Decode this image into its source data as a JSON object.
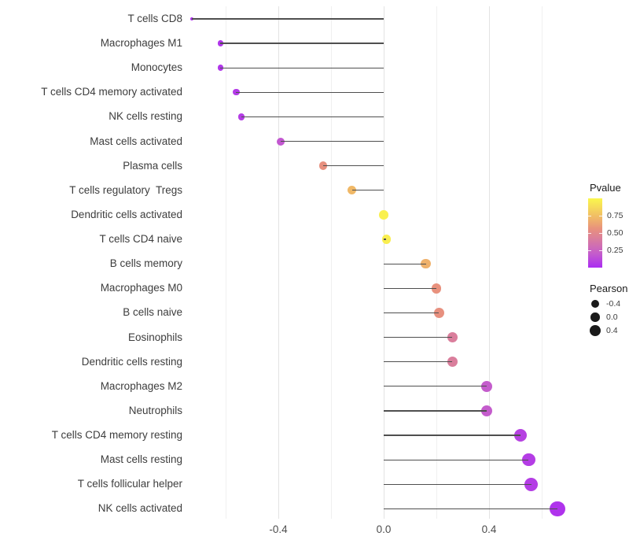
{
  "chart_data": {
    "type": "scatter",
    "variant": "lollipop",
    "orientation": "horizontal",
    "title": "",
    "xlabel": "",
    "ylabel": "",
    "xlim": [
      -0.74,
      0.72
    ],
    "baseline_x": 0,
    "grid": {
      "major": [
        -0.4,
        0,
        0.4
      ],
      "minor": [
        -0.6,
        -0.2,
        0.2,
        0.6
      ]
    },
    "x_ticks": [
      {
        "value": -0.4,
        "label": "-0.4"
      },
      {
        "value": 0.0,
        "label": "0.0"
      },
      {
        "value": 0.4,
        "label": "0.4"
      }
    ],
    "points": [
      {
        "label": "T cells CD8",
        "pearson": -0.73,
        "pvalue": 0.02
      },
      {
        "label": "Macrophages M1",
        "pearson": -0.62,
        "pvalue": 0.04
      },
      {
        "label": "Monocytes",
        "pearson": -0.62,
        "pvalue": 0.04
      },
      {
        "label": "T cells CD4 memory activated",
        "pearson": -0.56,
        "pvalue": 0.06
      },
      {
        "label": "NK cells resting",
        "pearson": -0.54,
        "pvalue": 0.07
      },
      {
        "label": "Mast cells activated",
        "pearson": -0.39,
        "pvalue": 0.18
      },
      {
        "label": "Plasma cells",
        "pearson": -0.23,
        "pvalue": 0.55
      },
      {
        "label": "T cells regulatory  Tregs",
        "pearson": -0.12,
        "pvalue": 0.72
      },
      {
        "label": "Dendritic cells activated",
        "pearson": 0.0,
        "pvalue": 0.97
      },
      {
        "label": "T cells CD4 naive",
        "pearson": 0.01,
        "pvalue": 0.96
      },
      {
        "label": "B cells memory",
        "pearson": 0.16,
        "pvalue": 0.69
      },
      {
        "label": "Macrophages M0",
        "pearson": 0.2,
        "pvalue": 0.56
      },
      {
        "label": "B cells naive",
        "pearson": 0.21,
        "pvalue": 0.55
      },
      {
        "label": "Eosinophils",
        "pearson": 0.26,
        "pvalue": 0.42
      },
      {
        "label": "Dendritic cells resting",
        "pearson": 0.26,
        "pvalue": 0.42
      },
      {
        "label": "Macrophages M2",
        "pearson": 0.39,
        "pvalue": 0.2
      },
      {
        "label": "Neutrophils",
        "pearson": 0.39,
        "pvalue": 0.2
      },
      {
        "label": "T cells CD4 memory resting",
        "pearson": 0.52,
        "pvalue": 0.09
      },
      {
        "label": "Mast cells resting",
        "pearson": 0.55,
        "pvalue": 0.07
      },
      {
        "label": "T cells follicular helper",
        "pearson": 0.56,
        "pvalue": 0.07
      },
      {
        "label": "NK cells activated",
        "pearson": 0.66,
        "pvalue": 0.03
      }
    ],
    "color_legend": {
      "title": "Pvalue",
      "ticks": [
        {
          "value": 0.75,
          "label": "0.75"
        },
        {
          "value": 0.5,
          "label": "0.50"
        },
        {
          "value": 0.25,
          "label": "0.25"
        }
      ],
      "gradient_stops": [
        {
          "p": 0.0,
          "color": "#AB2CF2"
        },
        {
          "p": 0.2,
          "color": "#C45CCC"
        },
        {
          "p": 0.42,
          "color": "#DA7E9C"
        },
        {
          "p": 0.56,
          "color": "#E8917D"
        },
        {
          "p": 0.72,
          "color": "#F0B867"
        },
        {
          "p": 0.88,
          "color": "#F6DC59"
        },
        {
          "p": 1.0,
          "color": "#FAF74C"
        }
      ]
    },
    "size_legend": {
      "title": "Pearson",
      "items": [
        {
          "value": -0.4,
          "label": "-0.4"
        },
        {
          "value": 0.0,
          "label": "0.0"
        },
        {
          "value": 0.4,
          "label": "0.4"
        }
      ]
    },
    "size_anchors": [
      {
        "value": -0.73,
        "radius": 2.0
      },
      {
        "value": -0.62,
        "radius": 3.8
      },
      {
        "value": -0.4,
        "radius": 5.0
      },
      {
        "value": 0.0,
        "radius": 5.8
      },
      {
        "value": 0.26,
        "radius": 6.6
      },
      {
        "value": 0.4,
        "radius": 7.2
      },
      {
        "value": 0.55,
        "radius": 8.3
      },
      {
        "value": 0.66,
        "radius": 9.8
      }
    ],
    "stem_color": "#4F4F4F"
  }
}
